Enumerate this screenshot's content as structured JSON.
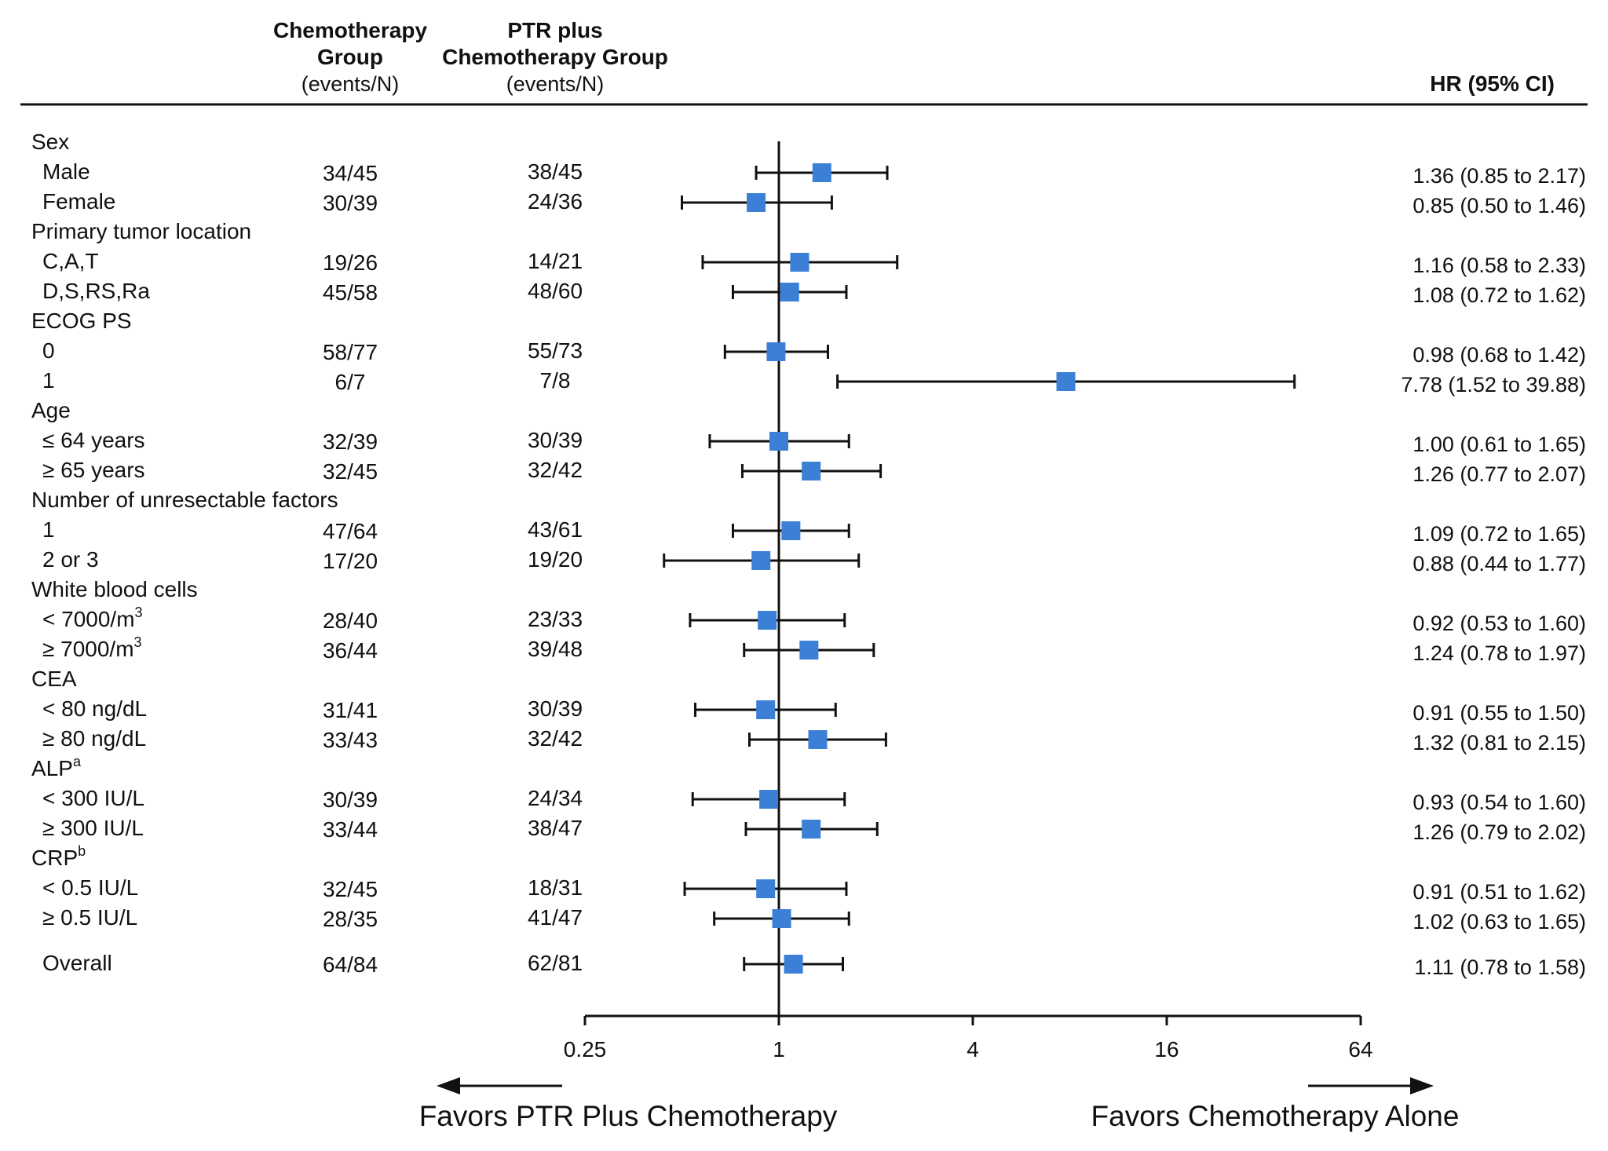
{
  "colors": {
    "marker": "#3b7fd6",
    "line": "#111111",
    "background": "#ffffff"
  },
  "header": {
    "col1_line1": "Chemotherapy",
    "col1_line2": "Group",
    "col1_line3": "(events/N)",
    "col2_line1": "PTR plus",
    "col2_line2": "Chemotherapy Group",
    "col2_line3": "(events/N)",
    "hr_title": "HR (95% CI)"
  },
  "footer": {
    "favors_left": "Favors PTR Plus Chemotherapy",
    "favors_right": "Favors Chemotherapy Alone"
  },
  "chart_data": {
    "type": "forest",
    "xlabel": "",
    "ylabel": "",
    "x_scale": "log2",
    "xlim": [
      0.25,
      64
    ],
    "xticks": [
      0.25,
      1,
      4,
      16,
      64
    ],
    "xtick_labels": [
      "0.25",
      "1",
      "4",
      "16",
      "64"
    ],
    "reference_line": 1,
    "rows": [
      {
        "kind": "group",
        "label": "Sex"
      },
      {
        "kind": "item",
        "label": "Male",
        "chemo": "34/45",
        "ptr": "38/45",
        "hr": 1.36,
        "lo": 0.85,
        "hi": 2.17,
        "hr_text": "1.36 (0.85 to 2.17)",
        "indent": 1
      },
      {
        "kind": "item",
        "label": "Female",
        "chemo": "30/39",
        "ptr": "24/36",
        "hr": 0.85,
        "lo": 0.5,
        "hi": 1.46,
        "hr_text": "0.85 (0.50 to 1.46)",
        "indent": 1
      },
      {
        "kind": "group",
        "label": "Primary tumor location"
      },
      {
        "kind": "item",
        "label": "C,A,T",
        "chemo": "19/26",
        "ptr": "14/21",
        "hr": 1.16,
        "lo": 0.58,
        "hi": 2.33,
        "hr_text": "1.16 (0.58 to 2.33)",
        "indent": 1
      },
      {
        "kind": "item",
        "label": "D,S,RS,Ra",
        "chemo": "45/58",
        "ptr": "48/60",
        "hr": 1.08,
        "lo": 0.72,
        "hi": 1.62,
        "hr_text": "1.08 (0.72 to 1.62)",
        "indent": 1
      },
      {
        "kind": "group",
        "label": "ECOG PS"
      },
      {
        "kind": "item",
        "label": "0",
        "chemo": "58/77",
        "ptr": "55/73",
        "hr": 0.98,
        "lo": 0.68,
        "hi": 1.42,
        "hr_text": "0.98 (0.68 to 1.42)",
        "indent": 1
      },
      {
        "kind": "item",
        "label": "1",
        "chemo": "6/7",
        "ptr": "7/8",
        "hr": 7.78,
        "lo": 1.52,
        "hi": 39.88,
        "hr_text": "7.78 (1.52 to 39.88)",
        "indent": 1
      },
      {
        "kind": "group",
        "label": "Age"
      },
      {
        "kind": "item",
        "label": "≤ 64 years",
        "chemo": "32/39",
        "ptr": "30/39",
        "hr": 1.0,
        "lo": 0.61,
        "hi": 1.65,
        "hr_text": "1.00 (0.61 to 1.65)",
        "indent": 1
      },
      {
        "kind": "item",
        "label": "≥ 65 years",
        "chemo": "32/45",
        "ptr": "32/42",
        "hr": 1.26,
        "lo": 0.77,
        "hi": 2.07,
        "hr_text": "1.26 (0.77 to 2.07)",
        "indent": 1
      },
      {
        "kind": "group",
        "label": "Number of unresectable factors"
      },
      {
        "kind": "item",
        "label": "1",
        "chemo": "47/64",
        "ptr": "43/61",
        "hr": 1.09,
        "lo": 0.72,
        "hi": 1.65,
        "hr_text": "1.09 (0.72 to 1.65)",
        "indent": 1
      },
      {
        "kind": "item",
        "label": "2 or 3",
        "chemo": "17/20",
        "ptr": "19/20",
        "hr": 0.88,
        "lo": 0.44,
        "hi": 1.77,
        "hr_text": "0.88 (0.44 to 1.77)",
        "indent": 1
      },
      {
        "kind": "group",
        "label": "White blood cells"
      },
      {
        "kind": "item",
        "label": "< 7000/m",
        "sup": "3",
        "chemo": "28/40",
        "ptr": "23/33",
        "hr": 0.92,
        "lo": 0.53,
        "hi": 1.6,
        "hr_text": "0.92 (0.53 to 1.60)",
        "indent": 1
      },
      {
        "kind": "item",
        "label": "≥ 7000/m",
        "sup": "3",
        "chemo": "36/44",
        "ptr": "39/48",
        "hr": 1.24,
        "lo": 0.78,
        "hi": 1.97,
        "hr_text": "1.24 (0.78 to 1.97)",
        "indent": 1
      },
      {
        "kind": "group",
        "label": "CEA"
      },
      {
        "kind": "item",
        "label": "< 80 ng/dL",
        "chemo": "31/41",
        "ptr": "30/39",
        "hr": 0.91,
        "lo": 0.55,
        "hi": 1.5,
        "hr_text": "0.91 (0.55 to 1.50)",
        "indent": 1
      },
      {
        "kind": "item",
        "label": "≥ 80 ng/dL",
        "chemo": "33/43",
        "ptr": "32/42",
        "hr": 1.32,
        "lo": 0.81,
        "hi": 2.15,
        "hr_text": "1.32 (0.81 to 2.15)",
        "indent": 1
      },
      {
        "kind": "group",
        "label": "ALP",
        "sup": "a"
      },
      {
        "kind": "item",
        "label": "< 300 IU/L",
        "chemo": "30/39",
        "ptr": "24/34",
        "hr": 0.93,
        "lo": 0.54,
        "hi": 1.6,
        "hr_text": "0.93 (0.54 to 1.60)",
        "indent": 1
      },
      {
        "kind": "item",
        "label": "≥ 300 IU/L",
        "chemo": "33/44",
        "ptr": "38/47",
        "hr": 1.26,
        "lo": 0.79,
        "hi": 2.02,
        "hr_text": "1.26 (0.79 to 2.02)",
        "indent": 1
      },
      {
        "kind": "group",
        "label": "CRP",
        "sup": "b"
      },
      {
        "kind": "item",
        "label": "< 0.5 IU/L",
        "chemo": "32/45",
        "ptr": "18/31",
        "hr": 0.91,
        "lo": 0.51,
        "hi": 1.62,
        "hr_text": "0.91 (0.51 to 1.62)",
        "indent": 1
      },
      {
        "kind": "item",
        "label": "≥ 0.5 IU/L",
        "chemo": "28/35",
        "ptr": "41/47",
        "hr": 1.02,
        "lo": 0.63,
        "hi": 1.65,
        "hr_text": "1.02 (0.63 to 1.65)",
        "indent": 1
      },
      {
        "kind": "overall",
        "label": "Overall",
        "chemo": "64/84",
        "ptr": "62/81",
        "hr": 1.11,
        "lo": 0.78,
        "hi": 1.58,
        "hr_text": "1.11 (0.78 to 1.58)",
        "indent": 0
      }
    ]
  }
}
